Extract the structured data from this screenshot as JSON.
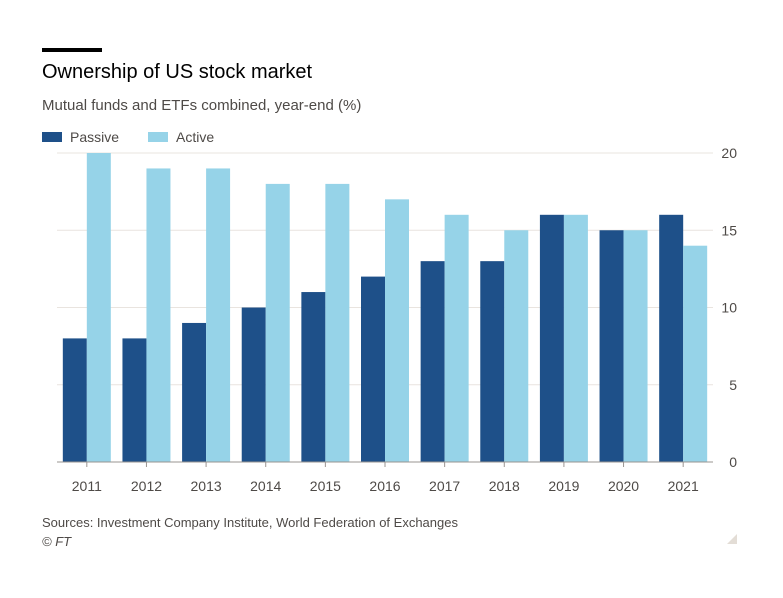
{
  "header": {
    "title": "Ownership of US stock market",
    "subtitle": "Mutual funds and ETFs combined, year-end (%)"
  },
  "footer": {
    "source": "Sources: Investment Company Institute, World Federation of Exchanges",
    "copyright": "© FT"
  },
  "chart_data": {
    "type": "bar",
    "title": "Ownership of US stock market",
    "subtitle": "Mutual funds and ETFs combined, year-end (%)",
    "categories": [
      "2011",
      "2012",
      "2013",
      "2014",
      "2015",
      "2016",
      "2017",
      "2018",
      "2019",
      "2020",
      "2021"
    ],
    "series": [
      {
        "name": "Passive",
        "color": "#1e5089",
        "values": [
          8,
          8,
          9,
          10,
          11,
          12,
          13,
          13,
          16,
          15,
          16
        ]
      },
      {
        "name": "Active",
        "color": "#96d3e8",
        "values": [
          20,
          19,
          19,
          18,
          18,
          17,
          16,
          15,
          16,
          15,
          14
        ]
      }
    ],
    "ylim": [
      0,
      20
    ],
    "yticks": [
      0,
      5,
      10,
      15,
      20
    ],
    "y_axis_side": "right",
    "grid": true,
    "legend_position": "top-left",
    "xlabel": "",
    "ylabel": ""
  }
}
